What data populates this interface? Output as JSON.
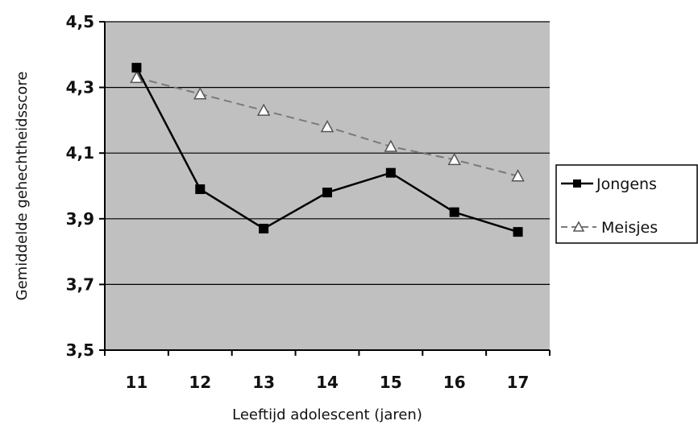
{
  "chart_data": {
    "type": "line",
    "xlabel": "Leeftijd adolescent (jaren)",
    "ylabel": "Gemiddelde gehechtheidsscore",
    "categories": [
      "11",
      "12",
      "13",
      "14",
      "15",
      "16",
      "17"
    ],
    "ylim": [
      3.5,
      4.5
    ],
    "yticks": [
      "3,5",
      "3,7",
      "3,9",
      "4,1",
      "4,3",
      "4,5"
    ],
    "ytick_values": [
      3.5,
      3.7,
      3.9,
      4.1,
      4.3,
      4.5
    ],
    "grid": true,
    "legend_position": "right",
    "series": [
      {
        "name": "Jongens",
        "values": [
          4.36,
          3.99,
          3.87,
          3.98,
          4.04,
          3.92,
          3.86
        ],
        "color": "#000000",
        "line_style": "solid",
        "marker": "square"
      },
      {
        "name": "Meisjes",
        "values": [
          4.33,
          4.28,
          4.23,
          4.18,
          4.12,
          4.08,
          4.03
        ],
        "color": "#7a7a7a",
        "line_style": "dashed",
        "marker": "triangle"
      }
    ],
    "colors": {
      "plot_background": "#c0c0c0",
      "gridline": "#000000"
    }
  }
}
